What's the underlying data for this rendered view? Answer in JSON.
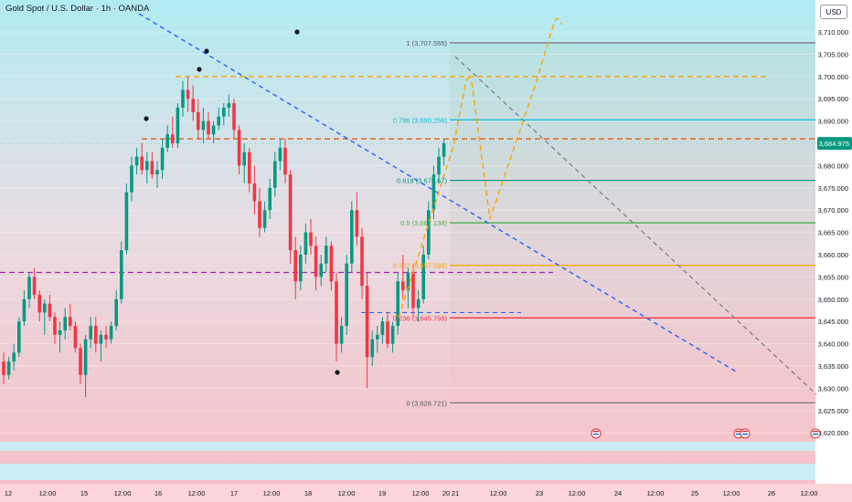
{
  "chart_title": "Gold Spot / U.S. Dollar · 1h · OANDA",
  "currency_button": "USD",
  "colors": {
    "up": "#089981",
    "down": "#f23645",
    "fib_line": "#787b86",
    "trend": "#2962ff",
    "path": "#f7a600"
  },
  "chart_data": {
    "type": "candlestick",
    "title": "Gold Spot / U.S. Dollar · 1h · OANDA",
    "y_ticks": [
      "3,710.000",
      "3,705.000",
      "3,700.000",
      "3,695.000",
      "3,690.000",
      "3,685.000",
      "3,680.000",
      "3,675.000",
      "3,670.000",
      "3,665.000",
      "3,660.000",
      "3,655.000",
      "3,650.000",
      "3,645.000",
      "3,640.000",
      "3,635.000",
      "3,630.000",
      "3,625.000",
      "3,620.000"
    ],
    "y_tick_values": [
      3710,
      3705,
      3700,
      3695,
      3690,
      3685,
      3680,
      3675,
      3670,
      3665,
      3660,
      3655,
      3650,
      3645,
      3640,
      3635,
      3630,
      3625,
      3620
    ],
    "ylim": [
      3617,
      3726
    ],
    "x_ticks": [
      "12",
      "12:00",
      "15",
      "12:00",
      "16",
      "12:00",
      "17",
      "12:00",
      "18",
      "12:00",
      "19",
      "12:00",
      "20",
      "21",
      "12:00",
      "23",
      "12:00",
      "24",
      "12:00",
      "25",
      "12:00",
      "26",
      "12:00"
    ],
    "current_price": {
      "label": "3,684.975",
      "value": 3684.975
    },
    "fib_levels": [
      {
        "ratio": 1,
        "label": "1 (3,707.555)",
        "value": 3707.555
      },
      {
        "ratio": 0.786,
        "label": "0.786 (3,690.256)",
        "value": 3690.256
      },
      {
        "ratio": 0.618,
        "label": "0.618 (3,676.67)",
        "value": 3676.67
      },
      {
        "ratio": 0.5,
        "label": "0.5 (3,667.138)",
        "value": 3667.138
      },
      {
        "ratio": 0.382,
        "label": "0.382 (3,657.599)",
        "value": 3657.599
      },
      {
        "ratio": 0.236,
        "label": "0.236 (3,645.798)",
        "value": 3645.798
      },
      {
        "ratio": 0,
        "label": "0 (3,626.721)",
        "value": 3626.721
      }
    ],
    "horizontal_levels": [
      3700,
      3686,
      3656
    ],
    "candles_ohlc": [
      [
        3636,
        3638,
        3631,
        3633
      ],
      [
        3633,
        3637,
        3632,
        3636
      ],
      [
        3636,
        3640,
        3634,
        3638
      ],
      [
        3638,
        3646,
        3637,
        3645
      ],
      [
        3645,
        3652,
        3644,
        3650
      ],
      [
        3650,
        3656,
        3648,
        3655
      ],
      [
        3655,
        3657,
        3650,
        3651
      ],
      [
        3651,
        3652,
        3645,
        3647
      ],
      [
        3647,
        3650,
        3642,
        3649
      ],
      [
        3649,
        3651,
        3645,
        3646
      ],
      [
        3646,
        3647,
        3640,
        3642
      ],
      [
        3642,
        3645,
        3638,
        3643
      ],
      [
        3643,
        3648,
        3641,
        3646
      ],
      [
        3646,
        3649,
        3643,
        3644
      ],
      [
        3644,
        3645,
        3638,
        3639
      ],
      [
        3639,
        3640,
        3631,
        3633
      ],
      [
        3633,
        3642,
        3628,
        3641
      ],
      [
        3641,
        3646,
        3639,
        3644
      ],
      [
        3644,
        3646,
        3638,
        3640
      ],
      [
        3640,
        3643,
        3636,
        3642
      ],
      [
        3642,
        3644,
        3639,
        3641
      ],
      [
        3641,
        3645,
        3640,
        3644
      ],
      [
        3644,
        3652,
        3643,
        3650
      ],
      [
        3650,
        3663,
        3649,
        3661
      ],
      [
        3661,
        3676,
        3660,
        3674
      ],
      [
        3674,
        3682,
        3672,
        3680
      ],
      [
        3680,
        3684,
        3678,
        3682
      ],
      [
        3682,
        3685,
        3678,
        3679
      ],
      [
        3679,
        3683,
        3676,
        3681
      ],
      [
        3681,
        3683,
        3677,
        3678
      ],
      [
        3678,
        3681,
        3675,
        3679
      ],
      [
        3679,
        3686,
        3677,
        3684
      ],
      [
        3684,
        3689,
        3683,
        3687
      ],
      [
        3687,
        3691,
        3684,
        3685
      ],
      [
        3685,
        3694,
        3684,
        3693
      ],
      [
        3693,
        3699,
        3691,
        3697
      ],
      [
        3697,
        3700,
        3692,
        3695
      ],
      [
        3695,
        3698,
        3690,
        3692
      ],
      [
        3692,
        3695,
        3686,
        3688
      ],
      [
        3688,
        3693,
        3685,
        3690
      ],
      [
        3690,
        3692,
        3686,
        3687
      ],
      [
        3687,
        3690,
        3685,
        3689
      ],
      [
        3689,
        3693,
        3688,
        3691
      ],
      [
        3691,
        3694,
        3689,
        3693
      ],
      [
        3693,
        3696,
        3691,
        3694
      ],
      [
        3694,
        3695,
        3686,
        3688
      ],
      [
        3688,
        3689,
        3678,
        3680
      ],
      [
        3680,
        3685,
        3676,
        3683
      ],
      [
        3683,
        3684,
        3674,
        3676
      ],
      [
        3676,
        3680,
        3669,
        3672
      ],
      [
        3672,
        3675,
        3664,
        3666
      ],
      [
        3666,
        3672,
        3665,
        3670
      ],
      [
        3670,
        3677,
        3668,
        3675
      ],
      [
        3675,
        3683,
        3673,
        3681
      ],
      [
        3681,
        3686,
        3679,
        3684
      ],
      [
        3684,
        3686,
        3676,
        3678
      ],
      [
        3678,
        3679,
        3658,
        3661
      ],
      [
        3661,
        3664,
        3650,
        3654
      ],
      [
        3654,
        3662,
        3652,
        3660
      ],
      [
        3660,
        3667,
        3658,
        3665
      ],
      [
        3665,
        3668,
        3660,
        3662
      ],
      [
        3662,
        3664,
        3652,
        3655
      ],
      [
        3655,
        3660,
        3653,
        3658
      ],
      [
        3658,
        3664,
        3656,
        3662
      ],
      [
        3662,
        3663,
        3652,
        3654
      ],
      [
        3654,
        3656,
        3636,
        3640
      ],
      [
        3640,
        3646,
        3638,
        3644
      ],
      [
        3644,
        3660,
        3642,
        3658
      ],
      [
        3658,
        3672,
        3656,
        3670
      ],
      [
        3670,
        3674,
        3662,
        3664
      ],
      [
        3664,
        3666,
        3650,
        3653
      ],
      [
        3653,
        3656,
        3630,
        3637
      ],
      [
        3637,
        3643,
        3635,
        3641
      ],
      [
        3641,
        3644,
        3638,
        3642
      ],
      [
        3642,
        3646,
        3640,
        3645
      ],
      [
        3645,
        3647,
        3639,
        3640
      ],
      [
        3640,
        3645,
        3638,
        3644
      ],
      [
        3644,
        3656,
        3642,
        3654
      ],
      [
        3654,
        3660,
        3650,
        3652
      ],
      [
        3652,
        3657,
        3648,
        3656
      ],
      [
        3656,
        3658,
        3646,
        3648
      ],
      [
        3648,
        3652,
        3645,
        3650
      ],
      [
        3650,
        3662,
        3649,
        3660
      ],
      [
        3660,
        3672,
        3659,
        3670
      ],
      [
        3670,
        3680,
        3668,
        3678
      ],
      [
        3678,
        3684,
        3676,
        3682
      ],
      [
        3682,
        3686,
        3680,
        3685
      ]
    ]
  }
}
